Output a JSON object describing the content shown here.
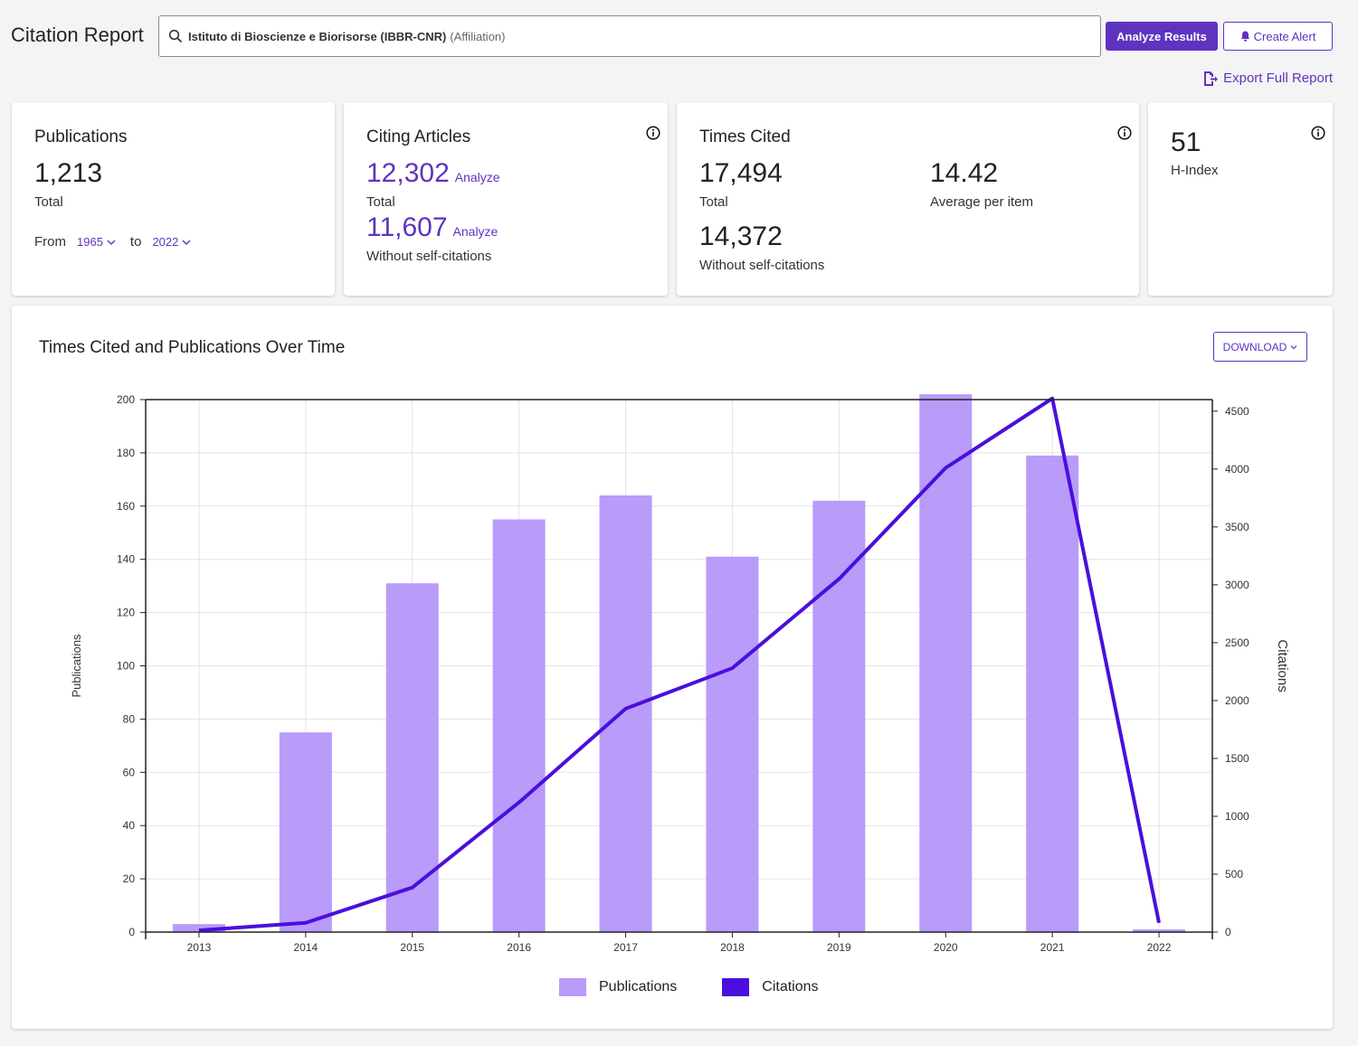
{
  "header": {
    "title": "Citation Report",
    "search_query": "Istituto di Bioscienze e Biorisorse (IBBR-CNR)",
    "search_type": "(Affiliation)",
    "analyze_label": "Analyze Results",
    "alert_label": "Create Alert",
    "export_label": "Export Full Report"
  },
  "cards": {
    "publications": {
      "title": "Publications",
      "total": "1,213",
      "total_label": "Total",
      "from_label": "From",
      "from_value": "1965",
      "to_label": "to",
      "to_value": "2022"
    },
    "citing": {
      "title": "Citing Articles",
      "total": "12,302",
      "total_label": "Total",
      "analyze": "Analyze",
      "without": "11,607",
      "without_label": "Without self-citations"
    },
    "times_cited": {
      "title": "Times Cited",
      "total": "17,494",
      "total_label": "Total",
      "average": "14.42",
      "average_label": "Average per item",
      "without": "14,372",
      "without_label": "Without self-citations"
    },
    "hindex": {
      "value": "51",
      "label": "H-Index"
    }
  },
  "chart": {
    "title": "Times Cited and Publications Over Time",
    "download_label": "DOWNLOAD"
  },
  "colors": {
    "accent": "#5e33bf",
    "bar": "#b99bfa",
    "line": "#4a0fdc"
  },
  "chart_data": {
    "type": "bar",
    "categories": [
      "2013",
      "2014",
      "2015",
      "2016",
      "2017",
      "2018",
      "2019",
      "2020",
      "2021",
      "2022"
    ],
    "series": [
      {
        "name": "Publications",
        "type": "bar",
        "axis": "left",
        "values": [
          3,
          75,
          131,
          155,
          164,
          141,
          162,
          202,
          179,
          1
        ]
      },
      {
        "name": "Citations",
        "type": "line",
        "axis": "right",
        "values": [
          15,
          80,
          385,
          1120,
          1930,
          2280,
          3050,
          4010,
          4610,
          80
        ]
      }
    ],
    "ylabel": "Publications",
    "y2label": "Citations",
    "ylim": [
      0,
      200
    ],
    "y2lim": [
      0,
      4600
    ],
    "yticks": [
      0,
      20,
      40,
      60,
      80,
      100,
      120,
      140,
      160,
      180,
      200
    ],
    "y2ticks": [
      0,
      500,
      1000,
      1500,
      2000,
      2500,
      3000,
      3500,
      4000,
      4500
    ],
    "grid": true,
    "legend": "bottom"
  }
}
